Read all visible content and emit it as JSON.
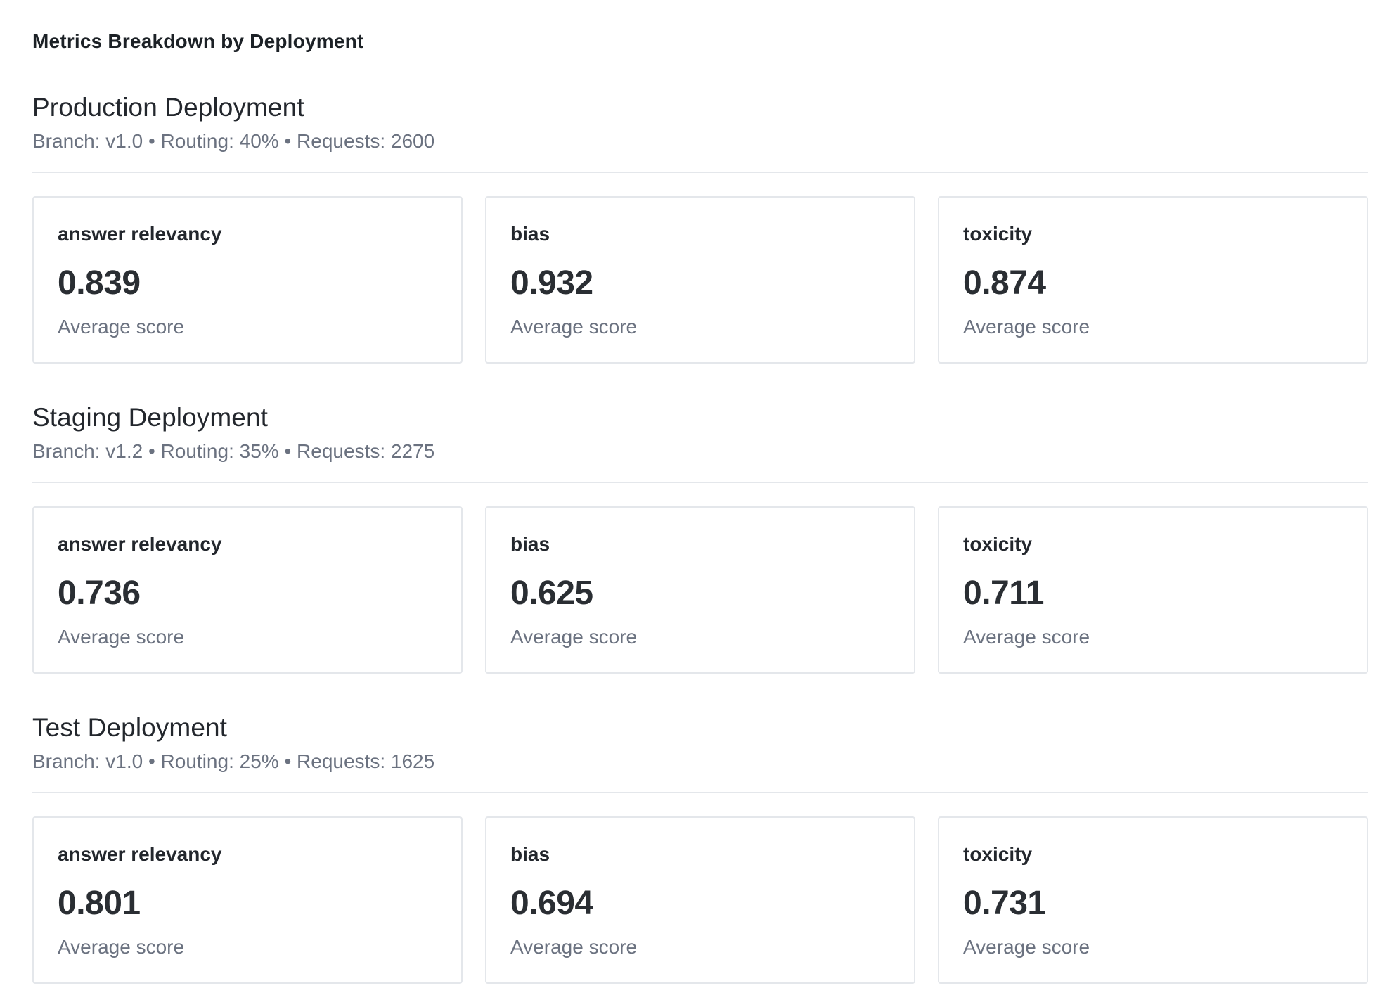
{
  "page": {
    "title": "Metrics Breakdown by Deployment"
  },
  "sections": [
    {
      "heading": "Production Deployment",
      "subtitle": "Branch: v1.0 • Routing: 40% • Requests: 2600",
      "branch": "v1.0",
      "routing": "40%",
      "requests": "2600",
      "metrics": [
        {
          "label": "answer relevancy",
          "value": "0.839",
          "sublabel": "Average score"
        },
        {
          "label": "bias",
          "value": "0.932",
          "sublabel": "Average score"
        },
        {
          "label": "toxicity",
          "value": "0.874",
          "sublabel": "Average score"
        }
      ]
    },
    {
      "heading": "Staging Deployment",
      "subtitle": "Branch: v1.2 • Routing: 35% • Requests: 2275",
      "branch": "v1.2",
      "routing": "35%",
      "requests": "2275",
      "metrics": [
        {
          "label": "answer relevancy",
          "value": "0.736",
          "sublabel": "Average score"
        },
        {
          "label": "bias",
          "value": "0.625",
          "sublabel": "Average score"
        },
        {
          "label": "toxicity",
          "value": "0.711",
          "sublabel": "Average score"
        }
      ]
    },
    {
      "heading": "Test Deployment",
      "subtitle": "Branch: v1.0 • Routing: 25% • Requests: 1625",
      "branch": "v1.0",
      "routing": "25%",
      "requests": "1625",
      "metrics": [
        {
          "label": "answer relevancy",
          "value": "0.801",
          "sublabel": "Average score"
        },
        {
          "label": "bias",
          "value": "0.694",
          "sublabel": "Average score"
        },
        {
          "label": "toxicity",
          "value": "0.731",
          "sublabel": "Average score"
        }
      ]
    }
  ]
}
